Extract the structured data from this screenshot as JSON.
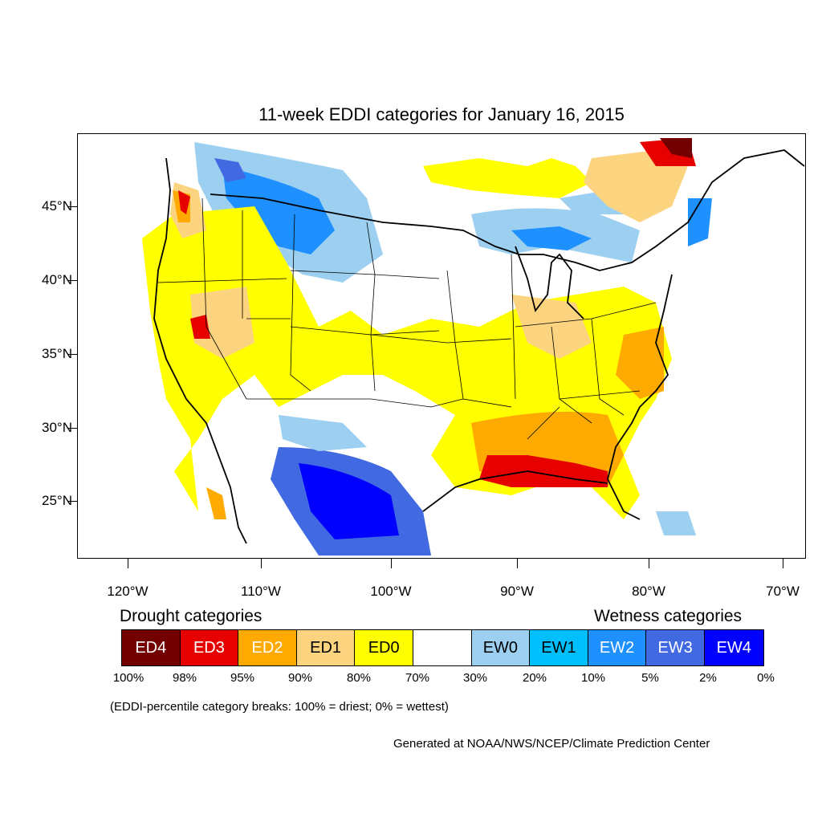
{
  "title": "11-week EDDI categories for January 16, 2015",
  "lat_labels": [
    "45°N",
    "40°N",
    "35°N",
    "30°N",
    "25°N"
  ],
  "lon_labels": [
    "120°W",
    "110°W",
    "100°W",
    "90°W",
    "80°W",
    "70°W"
  ],
  "drought_header": "Drought categories",
  "wetness_header": "Wetness categories",
  "categories": [
    {
      "label": "ED4",
      "color": "#730000"
    },
    {
      "label": "ED3",
      "color": "#e60000"
    },
    {
      "label": "ED2",
      "color": "#ffaa00"
    },
    {
      "label": "ED1",
      "color": "#fcd37f"
    },
    {
      "label": "ED0",
      "color": "#ffff00"
    },
    {
      "label": "",
      "color": "#ffffff"
    },
    {
      "label": "EW0",
      "color": "#9ccff0"
    },
    {
      "label": "EW1",
      "color": "#00bfff"
    },
    {
      "label": "EW2",
      "color": "#1e90ff"
    },
    {
      "label": "EW3",
      "color": "#4169e1"
    },
    {
      "label": "EW4",
      "color": "#0000ff"
    }
  ],
  "percent_breaks": [
    "100%",
    "98%",
    "95%",
    "90%",
    "80%",
    "70%",
    "30%",
    "20%",
    "10%",
    "5%",
    "2%",
    "0%"
  ],
  "note": "(EDDI-percentile category breaks: 100% = driest; 0% = wettest)",
  "credit": "Generated at NOAA/NWS/NCEP/Climate Prediction Center"
}
